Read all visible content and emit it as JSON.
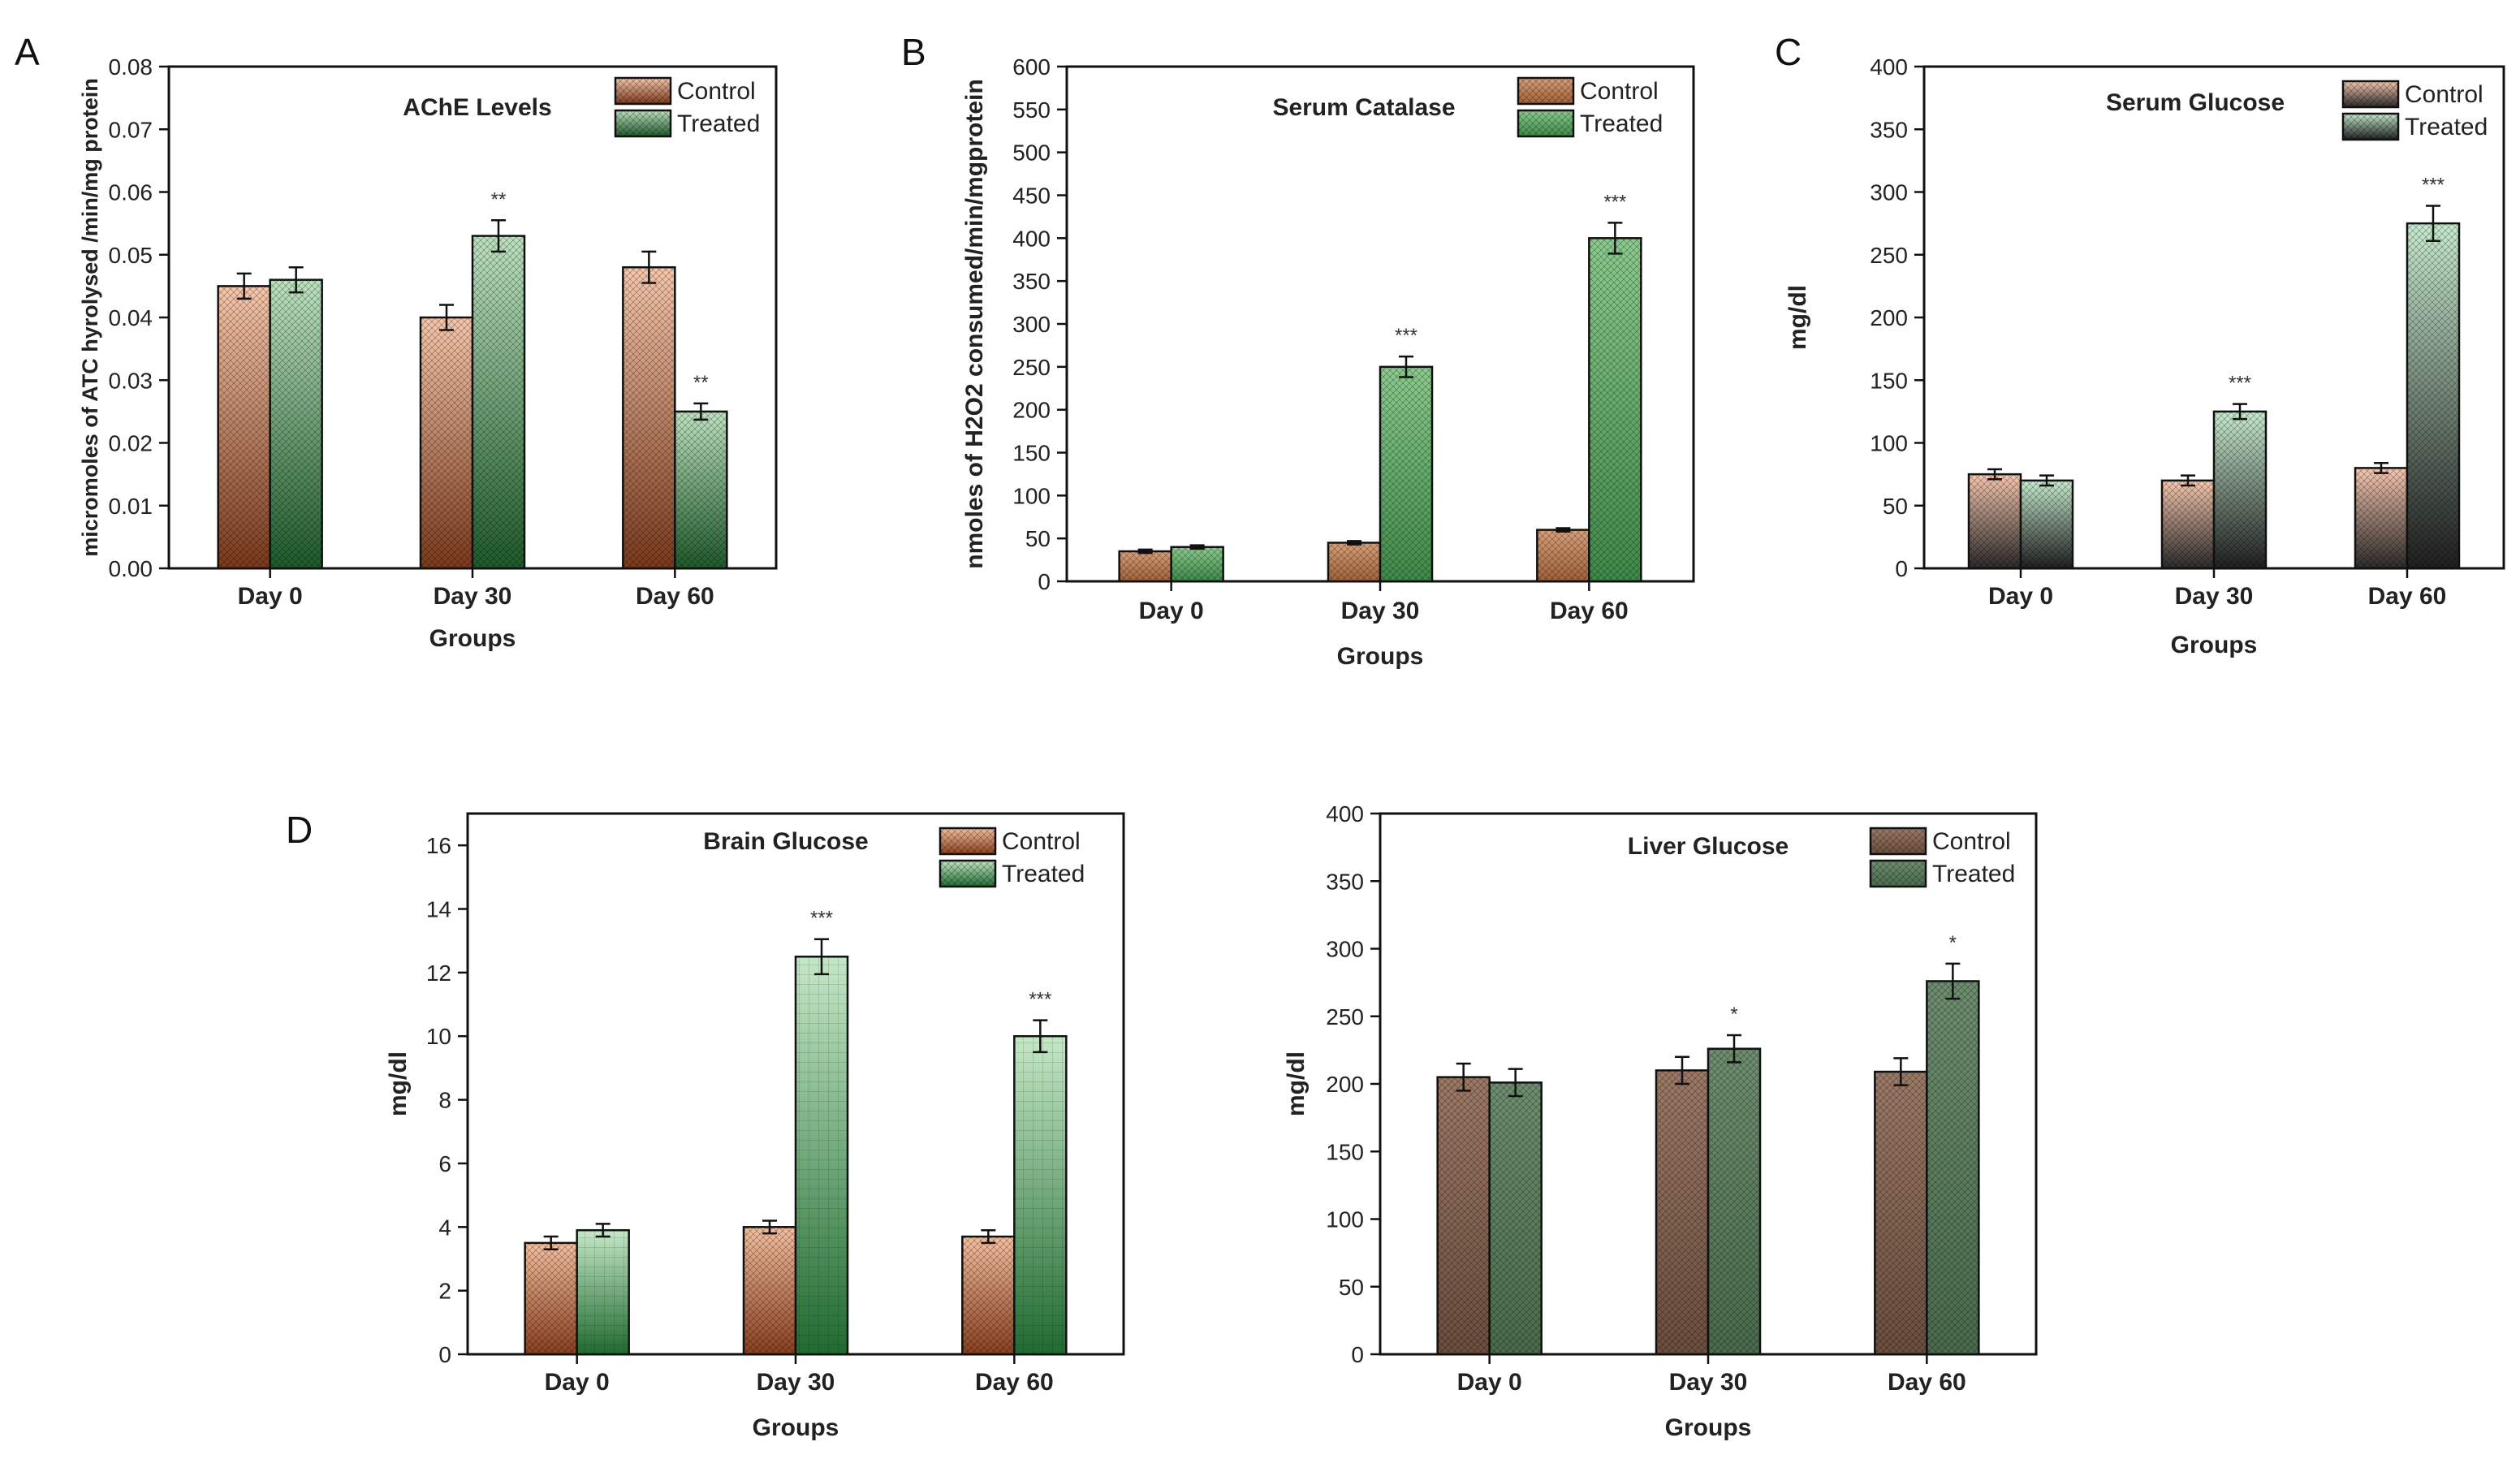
{
  "chart_data": [
    {
      "panel": "A",
      "type": "bar",
      "title": "AChE Levels",
      "xlabel": "Groups",
      "ylabel": "micromoles of ATC hyrolysed /min/mg protein",
      "categories": [
        "Day 0",
        "Day 30",
        "Day 60"
      ],
      "ylim": [
        0,
        0.08
      ],
      "yticks": [
        "0.00",
        "0.01",
        "0.02",
        "0.03",
        "0.04",
        "0.05",
        "0.06",
        "0.07",
        "0.08"
      ],
      "legend_position": "top-right",
      "series": [
        {
          "name": "Control",
          "values": [
            0.045,
            0.04,
            0.048
          ],
          "errors": [
            0.002,
            0.002,
            0.0025
          ],
          "colors": [
            "#f7c8ac",
            "#7a3a1c"
          ],
          "significance": [
            "",
            "",
            ""
          ]
        },
        {
          "name": "Treated",
          "values": [
            0.046,
            0.053,
            0.025
          ],
          "errors": [
            0.002,
            0.0025,
            0.0013
          ],
          "colors": [
            "#bfe3c1",
            "#1e5a2a"
          ],
          "significance": [
            "",
            "**",
            "**"
          ]
        }
      ]
    },
    {
      "panel": "B",
      "type": "bar",
      "title": "Serum Catalase",
      "xlabel": "Groups",
      "ylabel": "nmoles of  H2O2  consumed/min/mgprotein",
      "categories": [
        "Day 0",
        "Day 30",
        "Day 60"
      ],
      "ylim": [
        0,
        600
      ],
      "yticks": [
        "0",
        "50",
        "100",
        "150",
        "200",
        "250",
        "300",
        "350",
        "400",
        "450",
        "500",
        "550",
        "600"
      ],
      "legend_position": "top-right",
      "series": [
        {
          "name": "Control",
          "values": [
            35,
            45,
            60
          ],
          "errors": [
            2,
            2,
            2
          ],
          "colors": [
            "#d8a07a",
            "#a0623a"
          ],
          "significance": [
            "",
            "",
            ""
          ]
        },
        {
          "name": "Treated",
          "values": [
            40,
            250,
            400
          ],
          "errors": [
            2,
            12,
            18
          ],
          "colors": [
            "#8ccb8f",
            "#3f8a4a"
          ],
          "significance": [
            "",
            "***",
            "***"
          ]
        }
      ]
    },
    {
      "panel": "C",
      "type": "bar",
      "title": "Serum Glucose",
      "xlabel": "Groups",
      "ylabel": "mg/dl",
      "categories": [
        "Day 0",
        "Day 30",
        "Day 60"
      ],
      "ylim": [
        0,
        400
      ],
      "yticks": [
        "0",
        "50",
        "100",
        "150",
        "200",
        "250",
        "300",
        "350",
        "400"
      ],
      "legend_position": "top-right",
      "series": [
        {
          "name": "Control",
          "values": [
            75,
            70,
            80
          ],
          "errors": [
            4,
            4,
            4
          ],
          "colors": [
            "#f8c8b0",
            "#2a2a2a"
          ],
          "significance": [
            "",
            "",
            ""
          ]
        },
        {
          "name": "Treated",
          "values": [
            70,
            125,
            275
          ],
          "errors": [
            4,
            6,
            14
          ],
          "colors": [
            "#c8ecd0",
            "#1f1f1f"
          ],
          "significance": [
            "",
            "***",
            "***"
          ]
        }
      ]
    },
    {
      "panel": "D",
      "type": "bar",
      "title": "Brain Glucose",
      "xlabel": "Groups",
      "ylabel": "mg/dl",
      "categories": [
        "Day 0",
        "Day 30",
        "Day 60"
      ],
      "ylim": [
        0,
        17
      ],
      "yticks": [
        "0",
        "2",
        "4",
        "6",
        "8",
        "10",
        "12",
        "14",
        "16"
      ],
      "legend_position": "top-right",
      "series": [
        {
          "name": "Control",
          "values": [
            3.5,
            4.0,
            3.7
          ],
          "errors": [
            0.2,
            0.2,
            0.2
          ],
          "colors": [
            "#f5c0a0",
            "#8a4020"
          ],
          "significance": [
            "",
            "",
            ""
          ]
        },
        {
          "name": "Treated",
          "values": [
            3.9,
            12.5,
            10.0
          ],
          "errors": [
            0.2,
            0.55,
            0.5
          ],
          "colors": [
            "#c4e8c6",
            "#1f6b30"
          ],
          "significance": [
            "",
            "***",
            "***"
          ]
        }
      ]
    },
    {
      "panel": "",
      "type": "bar",
      "title": "Liver Glucose",
      "xlabel": "Groups",
      "ylabel": "mg/dl",
      "categories": [
        "Day 0",
        "Day 30",
        "Day 60"
      ],
      "ylim": [
        0,
        400
      ],
      "yticks": [
        "0",
        "50",
        "100",
        "150",
        "200",
        "250",
        "300",
        "350",
        "400"
      ],
      "legend_position": "top-right",
      "series": [
        {
          "name": "Control",
          "values": [
            205,
            210,
            209
          ],
          "errors": [
            10,
            10,
            10
          ],
          "colors": [
            "#9c7a66",
            "#6b4e3e"
          ],
          "significance": [
            "",
            "",
            ""
          ]
        },
        {
          "name": "Treated",
          "values": [
            201,
            226,
            276
          ],
          "errors": [
            10,
            10,
            13
          ],
          "colors": [
            "#6e8e70",
            "#4a6b4c"
          ],
          "significance": [
            "",
            "*",
            "*"
          ]
        }
      ]
    }
  ]
}
